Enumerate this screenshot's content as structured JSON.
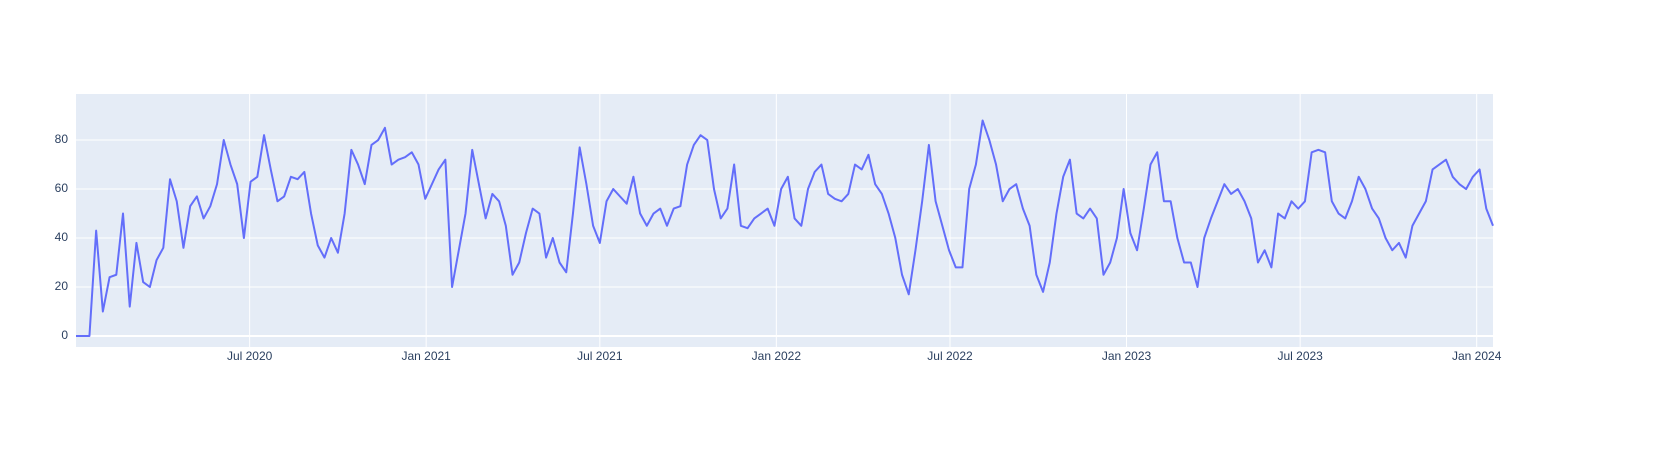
{
  "chart_data": {
    "type": "line",
    "x": [
      "2020-01-02",
      "2020-01-09",
      "2020-01-16",
      "2020-01-23",
      "2020-01-30",
      "2020-02-06",
      "2020-02-13",
      "2020-02-20",
      "2020-02-27",
      "2020-03-05",
      "2020-03-12",
      "2020-03-19",
      "2020-03-26",
      "2020-04-02",
      "2020-04-09",
      "2020-04-16",
      "2020-04-23",
      "2020-04-30",
      "2020-05-07",
      "2020-05-14",
      "2020-05-21",
      "2020-05-28",
      "2020-06-04",
      "2020-06-11",
      "2020-06-18",
      "2020-06-25",
      "2020-07-02",
      "2020-07-09",
      "2020-07-16",
      "2020-07-23",
      "2020-07-30",
      "2020-08-06",
      "2020-08-13",
      "2020-08-20",
      "2020-08-27",
      "2020-09-03",
      "2020-09-10",
      "2020-09-17",
      "2020-09-24",
      "2020-10-01",
      "2020-10-08",
      "2020-10-15",
      "2020-10-22",
      "2020-10-29",
      "2020-11-05",
      "2020-11-12",
      "2020-11-19",
      "2020-11-26",
      "2020-12-03",
      "2020-12-10",
      "2020-12-17",
      "2020-12-24",
      "2020-12-31",
      "2021-01-07",
      "2021-01-14",
      "2021-01-21",
      "2021-01-28",
      "2021-02-04",
      "2021-02-11",
      "2021-02-18",
      "2021-02-25",
      "2021-03-04",
      "2021-03-11",
      "2021-03-18",
      "2021-03-25",
      "2021-04-01",
      "2021-04-08",
      "2021-04-15",
      "2021-04-22",
      "2021-04-29",
      "2021-05-06",
      "2021-05-13",
      "2021-05-20",
      "2021-05-27",
      "2021-06-03",
      "2021-06-10",
      "2021-06-17",
      "2021-06-24",
      "2021-07-01",
      "2021-07-08",
      "2021-07-15",
      "2021-07-22",
      "2021-07-29",
      "2021-08-05",
      "2021-08-12",
      "2021-08-19",
      "2021-08-26",
      "2021-09-02",
      "2021-09-09",
      "2021-09-16",
      "2021-09-23",
      "2021-09-30",
      "2021-10-07",
      "2021-10-14",
      "2021-10-21",
      "2021-10-28",
      "2021-11-04",
      "2021-11-11",
      "2021-11-18",
      "2021-11-25",
      "2021-12-02",
      "2021-12-09",
      "2021-12-16",
      "2021-12-23",
      "2021-12-30",
      "2022-01-06",
      "2022-01-13",
      "2022-01-20",
      "2022-01-27",
      "2022-02-03",
      "2022-02-10",
      "2022-02-17",
      "2022-02-24",
      "2022-03-03",
      "2022-03-10",
      "2022-03-17",
      "2022-03-24",
      "2022-03-31",
      "2022-04-07",
      "2022-04-14",
      "2022-04-21",
      "2022-04-28",
      "2022-05-05",
      "2022-05-12",
      "2022-05-19",
      "2022-05-26",
      "2022-06-02",
      "2022-06-09",
      "2022-06-16",
      "2022-06-23",
      "2022-06-30",
      "2022-07-07",
      "2022-07-14",
      "2022-07-21",
      "2022-07-28",
      "2022-08-04",
      "2022-08-11",
      "2022-08-18",
      "2022-08-25",
      "2022-09-01",
      "2022-09-08",
      "2022-09-15",
      "2022-09-22",
      "2022-09-29",
      "2022-10-06",
      "2022-10-13",
      "2022-10-20",
      "2022-10-27",
      "2022-11-03",
      "2022-11-10",
      "2022-11-17",
      "2022-11-24",
      "2022-12-01",
      "2022-12-08",
      "2022-12-15",
      "2022-12-22",
      "2022-12-29",
      "2023-01-05",
      "2023-01-12",
      "2023-01-19",
      "2023-01-26",
      "2023-02-02",
      "2023-02-09",
      "2023-02-16",
      "2023-02-23",
      "2023-03-02",
      "2023-03-09",
      "2023-03-16",
      "2023-03-23",
      "2023-03-30",
      "2023-04-06",
      "2023-04-13",
      "2023-04-20",
      "2023-04-27",
      "2023-05-04",
      "2023-05-11",
      "2023-05-18",
      "2023-05-25",
      "2023-06-01",
      "2023-06-08",
      "2023-06-15",
      "2023-06-22",
      "2023-06-29",
      "2023-07-06",
      "2023-07-13",
      "2023-07-20",
      "2023-07-27",
      "2023-08-03",
      "2023-08-10",
      "2023-08-17",
      "2023-08-24",
      "2023-08-31",
      "2023-09-07",
      "2023-09-14",
      "2023-09-21",
      "2023-09-28",
      "2023-10-05",
      "2023-10-12",
      "2023-10-19",
      "2023-10-26",
      "2023-11-02",
      "2023-11-09",
      "2023-11-16",
      "2023-11-23",
      "2023-11-30",
      "2023-12-07",
      "2023-12-14",
      "2023-12-21",
      "2023-12-28",
      "2024-01-04",
      "2024-01-11",
      "2024-01-18"
    ],
    "series": [
      {
        "color": "#636efa",
        "values": [
          0,
          0,
          0,
          43,
          10,
          24,
          25,
          50,
          12,
          38,
          22,
          20,
          31,
          36,
          64,
          55,
          36,
          53,
          57,
          48,
          53,
          62,
          80,
          70,
          62,
          40,
          63,
          65,
          82,
          68,
          55,
          57,
          65,
          64,
          67,
          50,
          37,
          32,
          40,
          34,
          50,
          76,
          70,
          62,
          78,
          80,
          85,
          70,
          72,
          73,
          75,
          70,
          56,
          62,
          68,
          72,
          20,
          35,
          50,
          76,
          62,
          48,
          58,
          55,
          45,
          25,
          30,
          42,
          52,
          50,
          32,
          40,
          30,
          26,
          50,
          77,
          62,
          45,
          38,
          55,
          60,
          57,
          54,
          65,
          50,
          45,
          50,
          52,
          45,
          52,
          53,
          70,
          78,
          82,
          80,
          60,
          48,
          52,
          70,
          45,
          44,
          48,
          50,
          52,
          45,
          60,
          65,
          48,
          45,
          60,
          67,
          70,
          58,
          56,
          55,
          58,
          70,
          68,
          74,
          62,
          58,
          50,
          40,
          25,
          17,
          35,
          55,
          78,
          55,
          45,
          35,
          28,
          28,
          60,
          70,
          88,
          80,
          70,
          55,
          60,
          62,
          52,
          45,
          25,
          18,
          30,
          50,
          65,
          72,
          50,
          48,
          52,
          48,
          25,
          30,
          40,
          60,
          42,
          35,
          52,
          70,
          75,
          55,
          55,
          40,
          30,
          30,
          20,
          40,
          48,
          55,
          62,
          58,
          60,
          55,
          48,
          30,
          35,
          28,
          50,
          48,
          55,
          52,
          55,
          75,
          76,
          75,
          55,
          50,
          48,
          55,
          65,
          60,
          52,
          48,
          40,
          35,
          38,
          32,
          45,
          50,
          55,
          68,
          70,
          72,
          65,
          62,
          60,
          65,
          68,
          52,
          45
        ]
      }
    ],
    "xlim": [
      "2020-01-02",
      "2024-01-18"
    ],
    "xticks": [
      {
        "value": "2020-07-01",
        "label": "Jul 2020"
      },
      {
        "value": "2021-01-01",
        "label": "Jan 2021"
      },
      {
        "value": "2021-07-01",
        "label": "Jul 2021"
      },
      {
        "value": "2022-01-01",
        "label": "Jan 2022"
      },
      {
        "value": "2022-07-01",
        "label": "Jul 2022"
      },
      {
        "value": "2023-01-01",
        "label": "Jan 2023"
      },
      {
        "value": "2023-07-01",
        "label": "Jul 2023"
      },
      {
        "value": "2024-01-01",
        "label": "Jan 2024"
      }
    ],
    "ylim": [
      -4.5,
      98.8
    ],
    "yticks": [
      0,
      20,
      40,
      60,
      80
    ],
    "grid": true
  }
}
